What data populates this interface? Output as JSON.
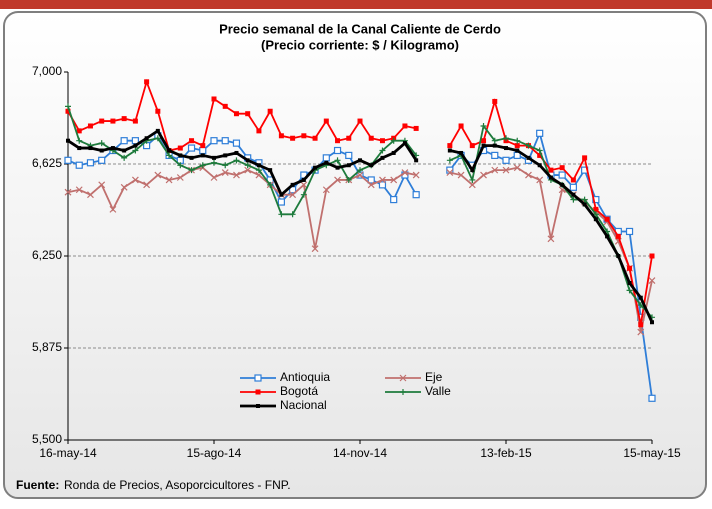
{
  "chart_data": {
    "type": "line",
    "title": "Precio semanal de la Canal Caliente de Cerdo",
    "subtitle": "(Precio corriente: $ / Kilogramo)",
    "source_label": "Fuente:",
    "source": "Ronda de Precios, Asoporcicultores  - FNP.",
    "categories": [
      "16-may-14",
      null,
      null,
      null,
      null,
      null,
      null,
      null,
      null,
      null,
      null,
      null,
      null,
      "15-ago-14",
      null,
      null,
      null,
      null,
      null,
      null,
      null,
      null,
      null,
      null,
      null,
      null,
      "14-nov-14",
      null,
      null,
      null,
      null,
      null,
      null,
      null,
      null,
      null,
      null,
      null,
      null,
      "13-feb-15",
      null,
      null,
      null,
      null,
      null,
      null,
      null,
      null,
      null,
      null,
      null,
      null,
      "15-may-15"
    ],
    "ylim": [
      5500,
      7000
    ],
    "yticks": [
      {
        "value": 5500,
        "label": "5,500"
      },
      {
        "value": 5875,
        "label": "5,875"
      },
      {
        "value": 6250,
        "label": "6,250"
      },
      {
        "value": 6625,
        "label": "6,625"
      },
      {
        "value": 7000,
        "label": "7,000"
      }
    ],
    "grid": true,
    "series": [
      {
        "name": "Antioquia",
        "color": "#2f7ed8",
        "marker": "square-open",
        "values": [
          6640,
          6620,
          6630,
          6640,
          6680,
          6720,
          6720,
          6700,
          6740,
          6660,
          6640,
          6690,
          6680,
          6720,
          6720,
          6710,
          6650,
          6630,
          6560,
          6470,
          6520,
          6580,
          6600,
          6650,
          6680,
          6660,
          6580,
          6560,
          6540,
          6480,
          6580,
          6500,
          null,
          null,
          6600,
          6660,
          6620,
          6680,
          6660,
          6640,
          6660,
          6640,
          6750,
          6580,
          6580,
          6530,
          6600,
          6480,
          6400,
          6350,
          6350,
          6000,
          5670
        ]
      },
      {
        "name": "Eje",
        "color": "#c0706e",
        "marker": "x",
        "values": [
          6510,
          6520,
          6500,
          6540,
          6440,
          6530,
          6560,
          6540,
          6580,
          6560,
          6570,
          6600,
          6610,
          6570,
          6590,
          6580,
          6600,
          6580,
          6540,
          6500,
          6500,
          6540,
          6280,
          6520,
          6560,
          6560,
          6580,
          6540,
          6560,
          6560,
          6590,
          6580,
          null,
          null,
          6590,
          6580,
          6540,
          6580,
          6600,
          6600,
          6610,
          6580,
          6560,
          6320,
          6520,
          6500,
          6470,
          6430,
          6390,
          6310,
          6200,
          5940,
          6150
        ]
      },
      {
        "name": "Bogotá",
        "color": "#ff0000",
        "marker": "square",
        "values": [
          6840,
          6760,
          6780,
          6800,
          6800,
          6810,
          6800,
          6960,
          6840,
          6680,
          6690,
          6720,
          6700,
          6890,
          6860,
          6830,
          6830,
          6760,
          6840,
          6740,
          6730,
          6740,
          6730,
          6800,
          6720,
          6730,
          6800,
          6730,
          6720,
          6730,
          6780,
          6770,
          null,
          null,
          6700,
          6780,
          6700,
          6720,
          6880,
          6720,
          6700,
          6700,
          6660,
          6600,
          6610,
          6560,
          6650,
          6440,
          6400,
          6330,
          6200,
          5970,
          6250
        ]
      },
      {
        "name": "Valle",
        "color": "#1e7b3c",
        "marker": "plus",
        "values": [
          6860,
          6720,
          6700,
          6710,
          6680,
          6650,
          6680,
          6720,
          6730,
          6660,
          6620,
          6600,
          6620,
          6630,
          6620,
          6640,
          6620,
          6600,
          6540,
          6420,
          6420,
          6500,
          6600,
          6620,
          6640,
          6560,
          6600,
          6620,
          6680,
          6720,
          6720,
          6660,
          null,
          null,
          6640,
          6660,
          6560,
          6780,
          6720,
          6730,
          6720,
          6700,
          6680,
          6560,
          6540,
          6480,
          6480,
          6420,
          6350,
          6250,
          6110,
          6050,
          6000
        ]
      },
      {
        "name": "Nacional",
        "color": "#000000",
        "marker": "square-small",
        "values": [
          6720,
          6690,
          6690,
          6680,
          6690,
          6680,
          6700,
          6730,
          6760,
          6680,
          6660,
          6650,
          6660,
          6650,
          6660,
          6670,
          6640,
          6620,
          6600,
          6500,
          6540,
          6560,
          6610,
          6630,
          6610,
          6620,
          6640,
          6620,
          6650,
          6670,
          6710,
          6640,
          null,
          null,
          6680,
          6670,
          6600,
          6700,
          6700,
          6690,
          6680,
          6650,
          6620,
          6570,
          6540,
          6500,
          6460,
          6400,
          6330,
          6250,
          6140,
          6080,
          5980
        ]
      }
    ]
  }
}
